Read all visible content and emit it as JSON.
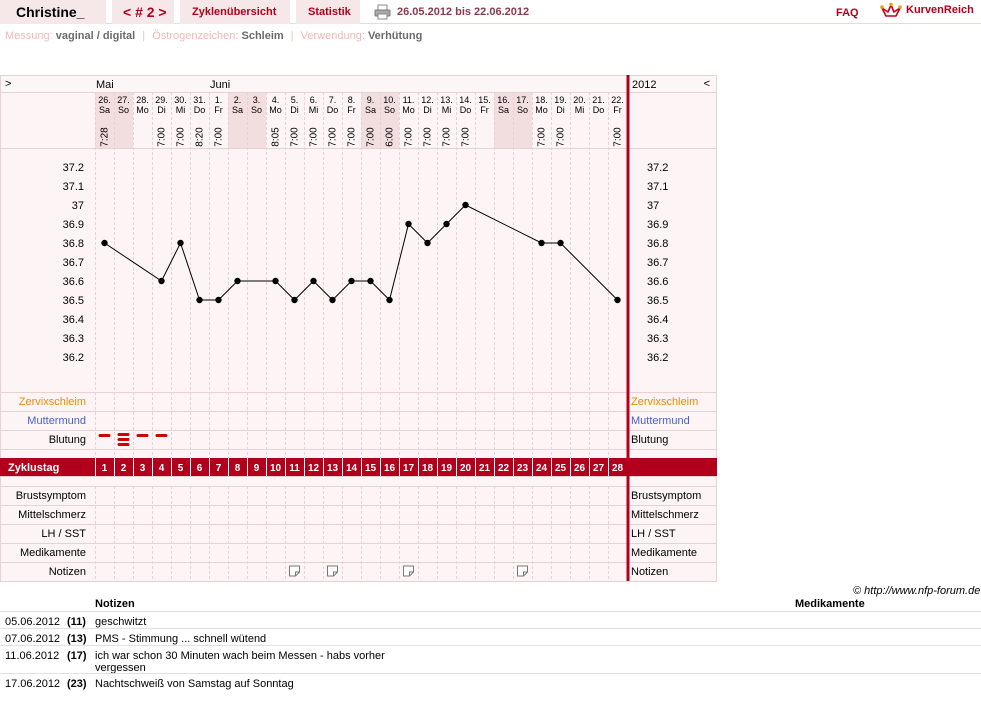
{
  "header": {
    "user": "Christine_",
    "cycle": "< # 2 >",
    "cycle_overview": "Zyklenübersicht",
    "statistics": "Statistik",
    "date_range": "26.05.2012 bis 22.06.2012",
    "faq": "FAQ",
    "logo": "KurvenReich"
  },
  "info": {
    "measurement_label": "Messung:",
    "measurement_value": "vaginal / digital",
    "estrogen_label": "Östrogenzeichen:",
    "estrogen_value": "Schleim",
    "usage_label": "Verwendung:",
    "usage_value": "Verhütung"
  },
  "nav": {
    "prev": ">",
    "next": "<",
    "year": "2012"
  },
  "months": [
    {
      "name": "Mai",
      "col": 0
    },
    {
      "name": "Juni",
      "col": 6
    }
  ],
  "days": [
    {
      "date": "26.",
      "wd": "Sa",
      "time": "7:28",
      "weekend": true
    },
    {
      "date": "27.",
      "wd": "So",
      "time": "",
      "weekend": true
    },
    {
      "date": "28.",
      "wd": "Mo",
      "time": "",
      "weekend": false
    },
    {
      "date": "29.",
      "wd": "Di",
      "time": "7:00",
      "weekend": false
    },
    {
      "date": "30.",
      "wd": "Mi",
      "time": "7:00",
      "weekend": false
    },
    {
      "date": "31.",
      "wd": "Do",
      "time": "8:20",
      "weekend": false
    },
    {
      "date": "1.",
      "wd": "Fr",
      "time": "7:00",
      "weekend": false
    },
    {
      "date": "2.",
      "wd": "Sa",
      "time": "",
      "weekend": true
    },
    {
      "date": "3.",
      "wd": "So",
      "time": "",
      "weekend": true
    },
    {
      "date": "4.",
      "wd": "Mo",
      "time": "8:05",
      "weekend": false
    },
    {
      "date": "5.",
      "wd": "Di",
      "time": "7:00",
      "weekend": false
    },
    {
      "date": "6.",
      "wd": "Mi",
      "time": "7:00",
      "weekend": false
    },
    {
      "date": "7.",
      "wd": "Do",
      "time": "7:00",
      "weekend": false
    },
    {
      "date": "8.",
      "wd": "Fr",
      "time": "7:00",
      "weekend": false
    },
    {
      "date": "9.",
      "wd": "Sa",
      "time": "7:00",
      "weekend": true
    },
    {
      "date": "10.",
      "wd": "So",
      "time": "6:00",
      "weekend": true
    },
    {
      "date": "11.",
      "wd": "Mo",
      "time": "7:00",
      "weekend": false
    },
    {
      "date": "12.",
      "wd": "Di",
      "time": "7:00",
      "weekend": false
    },
    {
      "date": "13.",
      "wd": "Mi",
      "time": "7:00",
      "weekend": false
    },
    {
      "date": "14.",
      "wd": "Do",
      "time": "7:00",
      "weekend": false
    },
    {
      "date": "15.",
      "wd": "Fr",
      "time": "",
      "weekend": false
    },
    {
      "date": "16.",
      "wd": "Sa",
      "time": "",
      "weekend": true
    },
    {
      "date": "17.",
      "wd": "So",
      "time": "",
      "weekend": true
    },
    {
      "date": "18.",
      "wd": "Mo",
      "time": "7:00",
      "weekend": false
    },
    {
      "date": "19.",
      "wd": "Di",
      "time": "7:00",
      "weekend": false
    },
    {
      "date": "20.",
      "wd": "Mi",
      "time": "",
      "weekend": false
    },
    {
      "date": "21.",
      "wd": "Do",
      "time": "",
      "weekend": false
    },
    {
      "date": "22.",
      "wd": "Fr",
      "time": "7:00",
      "weekend": false
    }
  ],
  "chart_data": {
    "type": "line",
    "x": [
      1,
      2,
      3,
      4,
      5,
      6,
      7,
      8,
      9,
      10,
      11,
      12,
      13,
      14,
      15,
      16,
      17,
      18,
      19,
      20,
      21,
      22,
      23,
      24,
      25,
      26,
      27,
      28
    ],
    "series": [
      {
        "values": [
          36.8,
          null,
          null,
          36.6,
          36.8,
          36.5,
          36.5,
          36.6,
          null,
          36.6,
          36.5,
          36.6,
          36.5,
          36.6,
          36.6,
          36.5,
          36.9,
          36.8,
          36.9,
          37.0,
          null,
          null,
          null,
          36.8,
          36.8,
          null,
          null,
          36.5
        ]
      }
    ],
    "y_ticks": [
      "37.2",
      "37.1",
      "37",
      "36.9",
      "36.8",
      "36.7",
      "36.6",
      "36.5",
      "36.4",
      "36.3",
      "36.2"
    ],
    "ylim": [
      36.2,
      37.2
    ]
  },
  "rows": {
    "zervix": "Zervixschleim",
    "muttermund": "Muttermund",
    "blutung": "Blutung",
    "zyklustag": "Zyklustag",
    "brust": "Brustsymptom",
    "mittel": "Mittelschmerz",
    "lh": "LH / SST",
    "medi": "Medikamente",
    "notizen": "Notizen"
  },
  "bleeding": [
    {
      "col": 0,
      "level": 1
    },
    {
      "col": 1,
      "level": 3
    },
    {
      "col": 2,
      "level": 1
    },
    {
      "col": 3,
      "level": 1
    }
  ],
  "note_cols": [
    10,
    12,
    16,
    22
  ],
  "copyright": "© http://www.nfp-forum.de",
  "notes_header": "Notizen",
  "meds_header": "Medikamente",
  "notes": [
    {
      "date": "05.06.2012",
      "day": "(11)",
      "text": "geschwitzt"
    },
    {
      "date": "07.06.2012",
      "day": "(13)",
      "text": "PMS - Stimmung ... schnell wütend"
    },
    {
      "date": "11.06.2012",
      "day": "(17)",
      "text": "ich war schon 30 Minuten wach beim Messen - habs vorher vergessen"
    },
    {
      "date": "17.06.2012",
      "day": "(23)",
      "text": "Nachtschweiß von Samstag auf Sonntag"
    }
  ]
}
